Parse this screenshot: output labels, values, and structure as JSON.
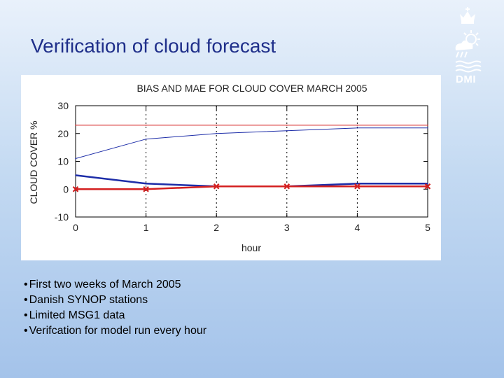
{
  "slide": {
    "title": "Verification of cloud forecast",
    "logo_text": "DMI"
  },
  "bullets": [
    "First two weeks of March 2005",
    "Danish SYNOP stations",
    "Limited MSG1 data",
    "Verifcation for model run every hour"
  ],
  "colors": {
    "title": "#1f2f8a",
    "blue_series": "#1d2da8",
    "red_series": "#d42020"
  },
  "chart_data": {
    "type": "line",
    "title": "BIAS AND MAE FOR CLOUD COVER MARCH 2005",
    "xlabel": "hour",
    "ylabel": "CLOUD COVER %",
    "x": [
      0,
      1,
      2,
      3,
      4,
      5
    ],
    "xlim": [
      0,
      5
    ],
    "ylim": [
      -10,
      30
    ],
    "xticks": [
      0,
      1,
      2,
      3,
      4,
      5
    ],
    "yticks": [
      -10,
      0,
      10,
      20,
      30
    ],
    "grid": "dashed vertical",
    "series": [
      {
        "color": "#1d2da8",
        "width": 1,
        "marker": "none",
        "values": [
          11,
          18,
          20,
          21,
          22,
          22
        ]
      },
      {
        "color": "#d42020",
        "width": 1,
        "marker": "none",
        "values": [
          23,
          23,
          23,
          23,
          23,
          23
        ]
      },
      {
        "color": "#1d2da8",
        "width": 2.5,
        "marker": "none",
        "values": [
          5,
          2,
          1,
          1,
          2,
          2
        ]
      },
      {
        "color": "#d42020",
        "width": 2.5,
        "marker": "x",
        "values": [
          0,
          0,
          1,
          1,
          1,
          1
        ]
      }
    ]
  }
}
